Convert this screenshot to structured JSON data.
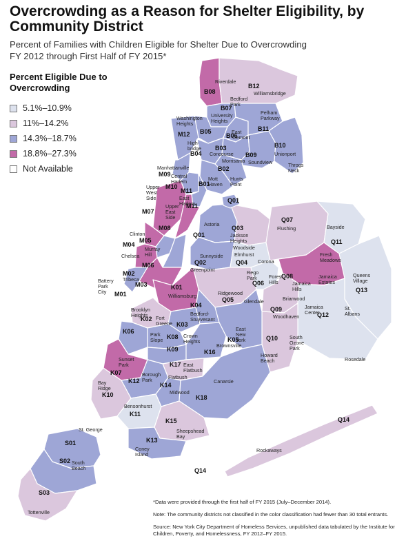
{
  "title": "Overcrowding as a Reason for Shelter Eligibility, by Community District",
  "subtitle_line1": "Percent of Families with Children Eligible for Shelter Due to Overcrowding",
  "subtitle_line2": "FY 2012 through First Half of FY 2015*",
  "legend": {
    "title_line1": "Percent Eligible Due to",
    "title_line2": "Overcrowding",
    "items": [
      {
        "label": "5.1%–10.9%",
        "color": "#dde2ee"
      },
      {
        "label": "11%–14.2%",
        "color": "#dbc7dd"
      },
      {
        "label": "14.3%–18.7%",
        "color": "#9ea6d6"
      },
      {
        "label": "18.8%–27.3%",
        "color": "#c26aa8"
      },
      {
        "label": "Not Available",
        "color": "#ffffff"
      }
    ]
  },
  "colors": {
    "c1": "#dde2ee",
    "c2": "#dbc7dd",
    "c3": "#9ea6d6",
    "c4": "#c26aa8",
    "na": "#ffffff",
    "border": "#ffffff",
    "water": "#ffffff"
  },
  "district_codes": {
    "bronx": [
      "B01",
      "B02",
      "B03",
      "B04",
      "B05",
      "B06",
      "B07",
      "B08",
      "B09",
      "B10",
      "B11",
      "B12"
    ],
    "manhattan": [
      "M01",
      "M02",
      "M03",
      "M04",
      "M05",
      "M06",
      "M07",
      "M08",
      "M09",
      "M10",
      "M11",
      "M12"
    ],
    "queens": [
      "Q01",
      "Q02",
      "Q03",
      "Q04",
      "Q05",
      "Q06",
      "Q07",
      "Q08",
      "Q09",
      "Q10",
      "Q11",
      "Q12",
      "Q13",
      "Q14"
    ],
    "brooklyn": [
      "K01",
      "K02",
      "K03",
      "K04",
      "K05",
      "K06",
      "K07",
      "K08",
      "K09",
      "K10",
      "K11",
      "K12",
      "K13",
      "K14",
      "K15",
      "K16",
      "K17",
      "K18"
    ],
    "staten_island": [
      "S01",
      "S02",
      "S03"
    ]
  },
  "place_names": {
    "riverdale": "Riverdale",
    "williamsbridge": "Williamsbridge",
    "bedford_park": "Bedford\nPark",
    "university_heights": "University\nHeights",
    "washington_heights": "Washington\nHeights",
    "pelham_parkway": "Pelham\nParkway",
    "east_tremont": "East\nTremont",
    "highbridge": "High-\nbridge",
    "concourse": "Concourse",
    "unionport": "Unionport",
    "morrisania": "Morrisania",
    "soundview": "Soundview",
    "throgs_neck": "Throgs\nNeck",
    "manhattanville": "Manhattanville",
    "central_harlem": "Central\nHarlem",
    "mott_haven": "Mott\nHaven",
    "hunts_point": "Hunts\nPoint",
    "east_harlem": "East\nHarlem",
    "upper_west_side": "Upper\nWest\nSide",
    "upper_east_side": "Upper\nEast\nSide",
    "astoria": "Astoria",
    "jackson_heights": "Jackson\nHeights",
    "flushing": "Flushing",
    "bayside": "Bayside",
    "clinton": "Clinton",
    "murray_hill": "Murray\nHill",
    "chelsea": "Chelsea",
    "woodside": "Woodside",
    "sunnyside": "Sunnyside",
    "greenpoint": "Greenpoint",
    "elmhurst": "Elmhurst",
    "corona": "Corona",
    "fresh_meadows": "Fresh\nMeadows",
    "tribeca": "Tribeca",
    "battery_park_city": "Battery\nPark\nCity",
    "rego_park": "Rego\nPark",
    "forest_hills": "Forest\nHills",
    "jamaica_estates": "Jamaica\nEstates",
    "queens_village": "Queens\nVillage",
    "ridgewood": "Ridgewood",
    "williamsburg": "Williamsburg",
    "jamaica_hills": "Jamaica\nHills",
    "glendale": "Glendale",
    "briarwood": "Briarwood",
    "bedford_stuyvesant": "Bedford-\nStuyvesant",
    "fort_greene": "Fort\nGreene",
    "brooklyn_heights": "Brooklyn\nHeights",
    "woodhaven": "Woodhaven",
    "jamaica_center": "Jamaica\nCenter",
    "st_albans": "St.\nAlbans",
    "park_slope": "Park\nSlope",
    "crown_heights": "Crown\nHeights",
    "east_new_york": "East\nNew\nYork",
    "south_ozone_park": "South\nOzone\nPark",
    "brownsville": "Brownsville",
    "howard_beach": "Howard\nBeach",
    "rosedale": "Rosedale",
    "sunset_park": "Sunset\nPark",
    "east_flatbush": "East\nFlatbush",
    "borough_park": "Borough\nPark",
    "flatbush": "Flatbush",
    "canarsie": "Canarsie",
    "bay_ridge": "Bay\nRidge",
    "midwood": "Midwood",
    "bensonhurst": "Bensonhurst",
    "sheepshead_bay": "Sheepshead\nBay",
    "coney_island": "Coney\nIsland",
    "st_george": "St. George",
    "south_beach": "South\nBeach",
    "rockaways": "Rockaways",
    "tottenville": "Tottenville"
  },
  "notes": {
    "footnote": "*Data were provided through the first half of FY 2015 (July–December 2014).",
    "note": "Note: The community districts not classified in the color classification had fewer than 30 total entrants.",
    "source": "Source: New York City Department of Homeless Services, unpublished data tabulated by the Institute for Children, Poverty, and Homelessness, FY 2012–FY 2015."
  }
}
